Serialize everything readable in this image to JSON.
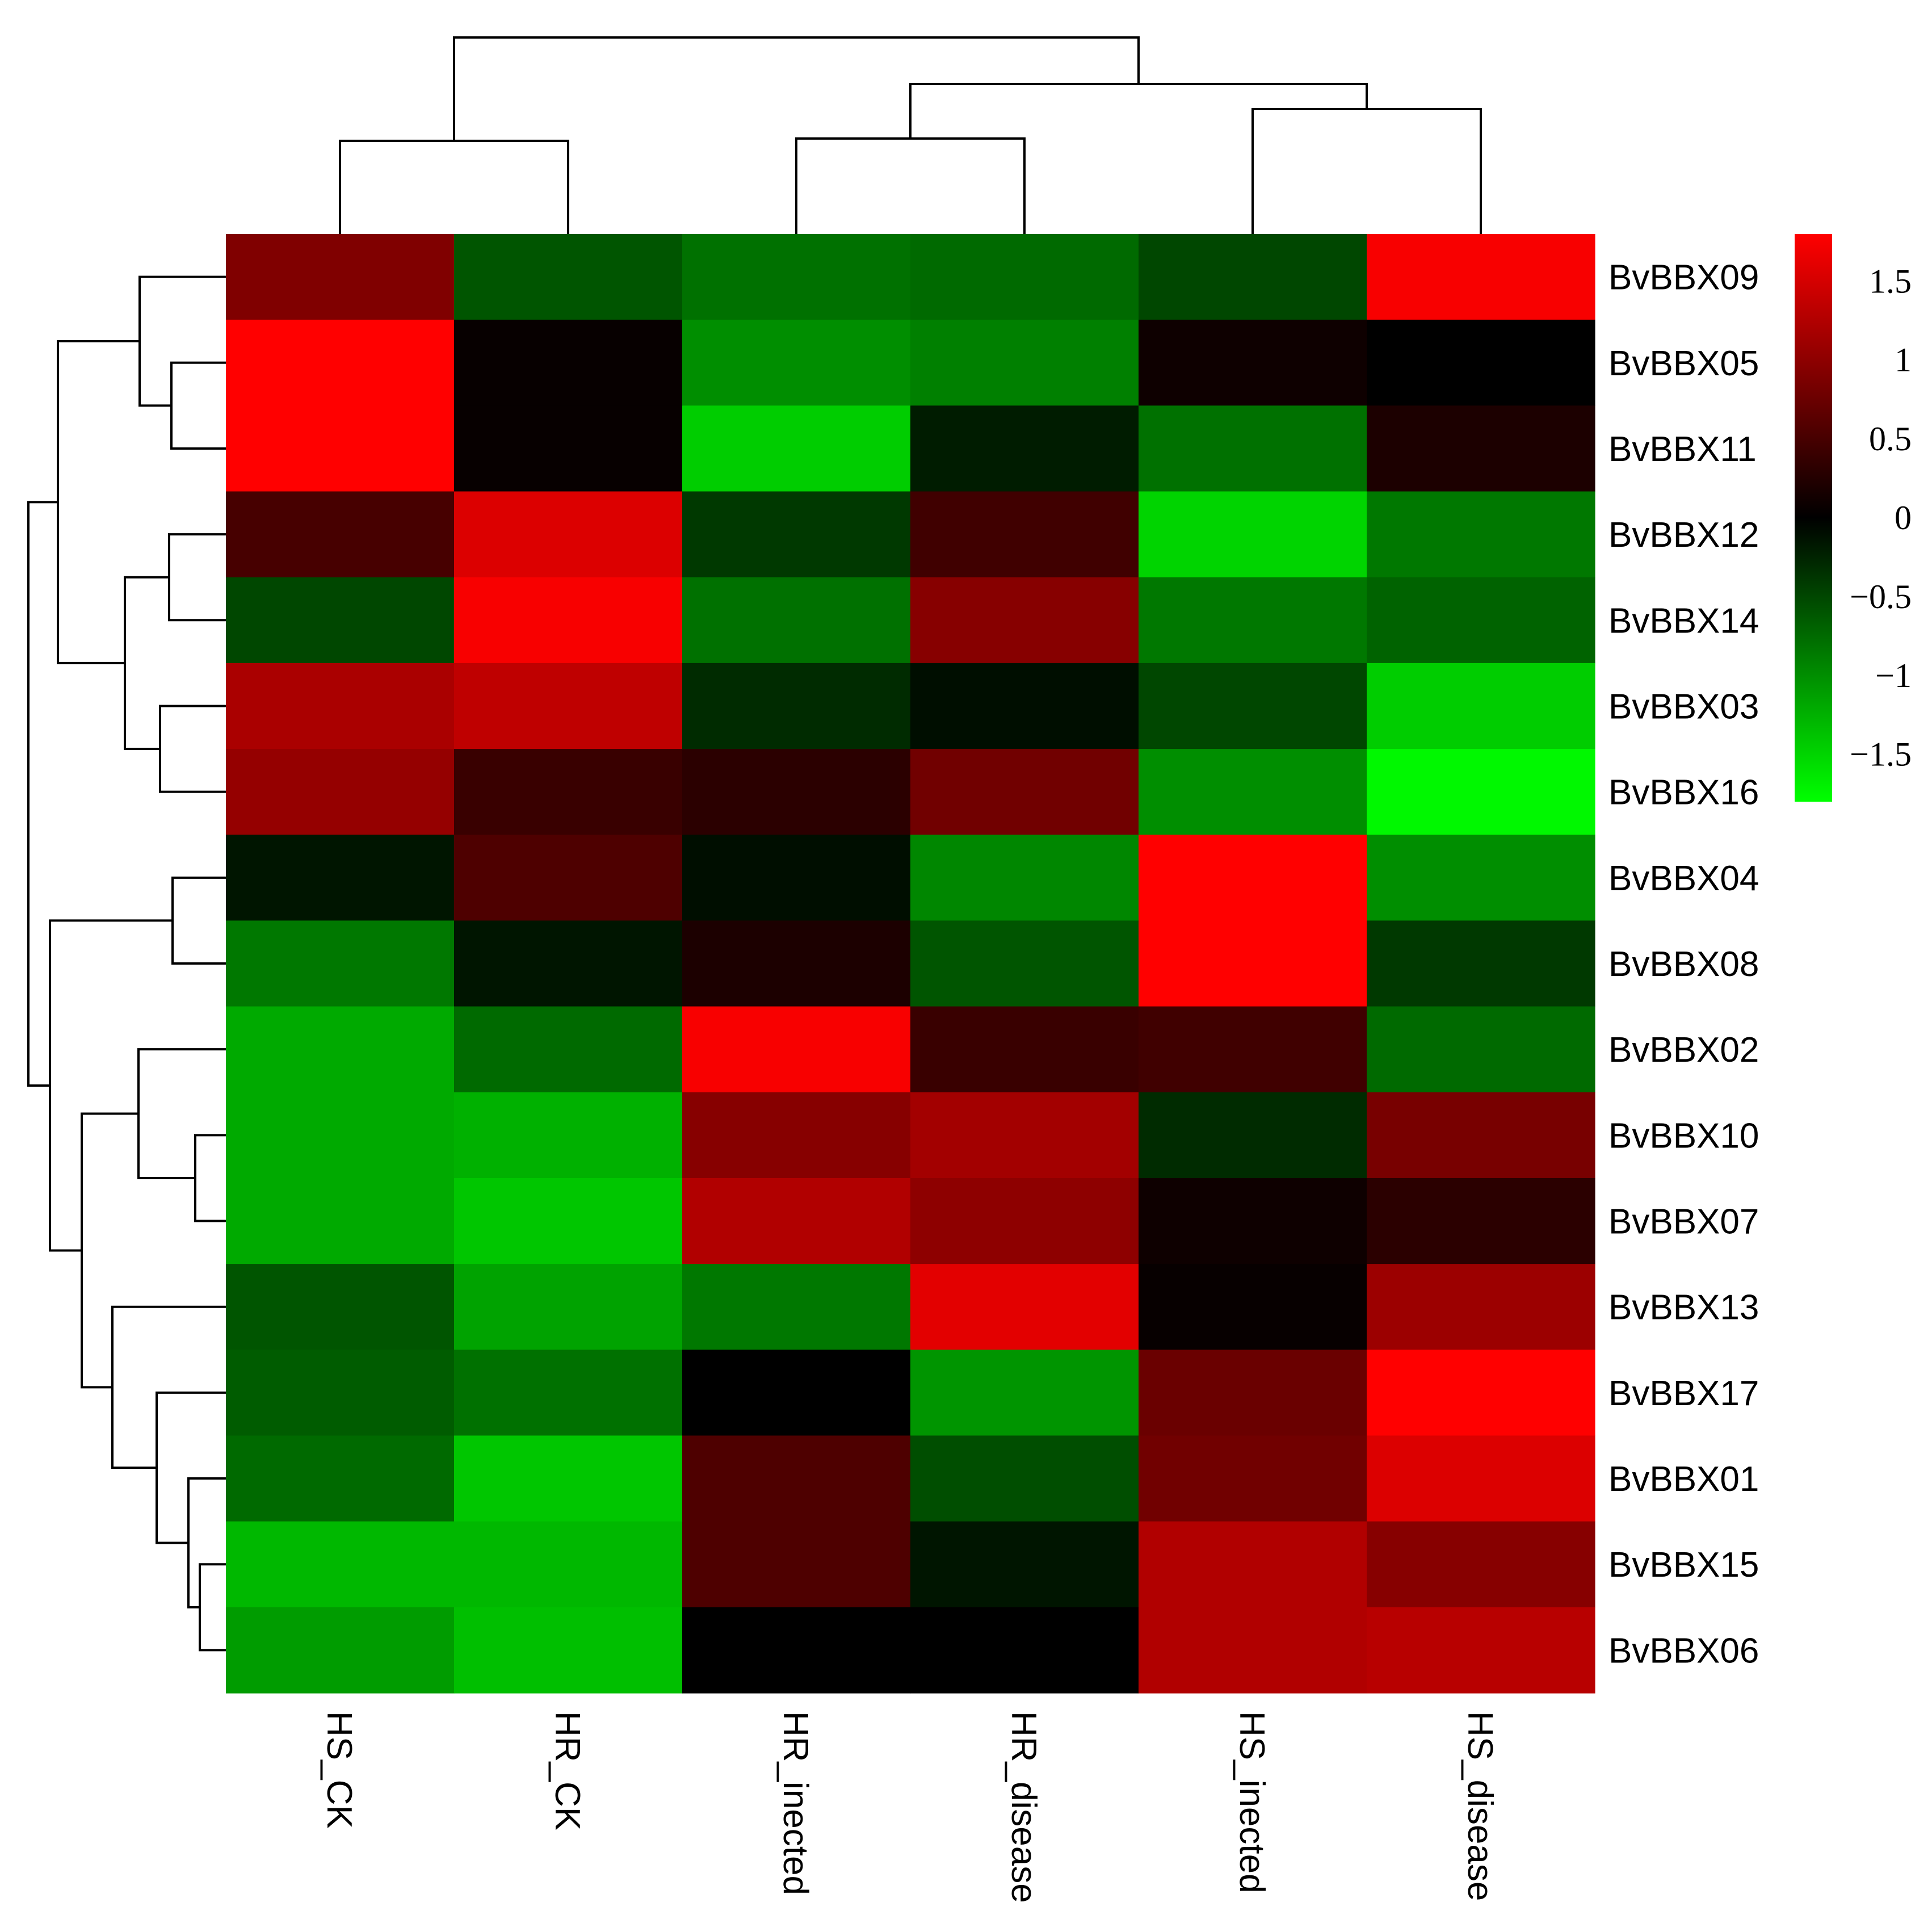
{
  "chart_data": {
    "type": "heatmap",
    "title": "",
    "xlabel": "",
    "ylabel": "",
    "columns": [
      "HS_CK",
      "HR_CK",
      "HR_inected",
      "HR_disease",
      "HS_inected",
      "HS_disease"
    ],
    "rows": [
      "BvBBX09",
      "BvBBX05",
      "BvBBX11",
      "BvBBX12",
      "BvBBX14",
      "BvBBX03",
      "BvBBX16",
      "BvBBX04",
      "BvBBX08",
      "BvBBX02",
      "BvBBX10",
      "BvBBX07",
      "BvBBX13",
      "BvBBX17",
      "BvBBX01",
      "BvBBX15",
      "BvBBX06"
    ],
    "values": [
      [
        0.9,
        -0.6,
        -0.8,
        -0.75,
        -0.5,
        1.75
      ],
      [
        1.8,
        0.05,
        -1.0,
        -0.9,
        0.1,
        0.0
      ],
      [
        1.8,
        0.05,
        -1.45,
        -0.2,
        -0.8,
        0.2
      ],
      [
        0.5,
        1.55,
        -0.4,
        0.45,
        -1.5,
        -0.85
      ],
      [
        -0.5,
        1.75,
        -0.8,
        0.95,
        -0.85,
        -0.7
      ],
      [
        1.2,
        1.35,
        -0.3,
        -0.1,
        -0.5,
        -1.45
      ],
      [
        1.05,
        0.4,
        0.3,
        0.8,
        -1.0,
        -1.75
      ],
      [
        -0.15,
        0.55,
        -0.1,
        -0.95,
        1.8,
        -1.0
      ],
      [
        -0.85,
        -0.15,
        0.2,
        -0.6,
        1.8,
        -0.4
      ],
      [
        -1.2,
        -0.75,
        1.75,
        0.4,
        0.45,
        -0.75
      ],
      [
        -1.2,
        -1.25,
        0.95,
        1.15,
        -0.3,
        0.85
      ],
      [
        -1.2,
        -1.4,
        1.25,
        1.0,
        0.1,
        0.3
      ],
      [
        -0.6,
        -1.15,
        -0.85,
        1.6,
        0.05,
        1.1
      ],
      [
        -0.65,
        -0.8,
        0.0,
        -1.05,
        0.75,
        1.8
      ],
      [
        -0.75,
        -1.4,
        0.55,
        -0.55,
        0.8,
        1.55
      ],
      [
        -1.3,
        -1.3,
        0.55,
        -0.15,
        1.25,
        0.95
      ],
      [
        -1.1,
        -1.35,
        0.0,
        0.0,
        1.25,
        1.3
      ]
    ],
    "color_scale": {
      "min": -1.8,
      "max": 1.8,
      "low": "#00ff00",
      "mid": "#000000",
      "high": "#ff0000"
    },
    "colorbar_ticks": [
      "1.5",
      "1",
      "0.5",
      "0",
      "−0.5",
      "−1",
      "−1.5"
    ],
    "colorbar_tick_values": [
      1.5,
      1,
      0.5,
      0,
      -0.5,
      -1,
      -1.5
    ],
    "legend_placement": "right"
  }
}
